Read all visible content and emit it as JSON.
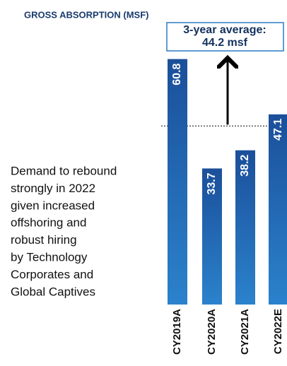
{
  "chart_data": {
    "type": "bar",
    "subtitle": "GROSS ABSORPTION (MSF)",
    "categories": [
      "CY2019A",
      "CY2020A",
      "CY2021A",
      "CY2022E"
    ],
    "values": [
      60.8,
      33.7,
      38.2,
      47.1
    ],
    "color": "#1d5aa6",
    "ylim": [
      0,
      70
    ],
    "average": {
      "title": "3-year average:",
      "value": 44.2,
      "value_label": "44.2 msf"
    },
    "note": [
      "Demand to rebound",
      "strongly in 2022",
      "given increased",
      "offshoring and",
      "robust hiring",
      "by Technology",
      "Corporates and",
      "Global Captives"
    ]
  }
}
